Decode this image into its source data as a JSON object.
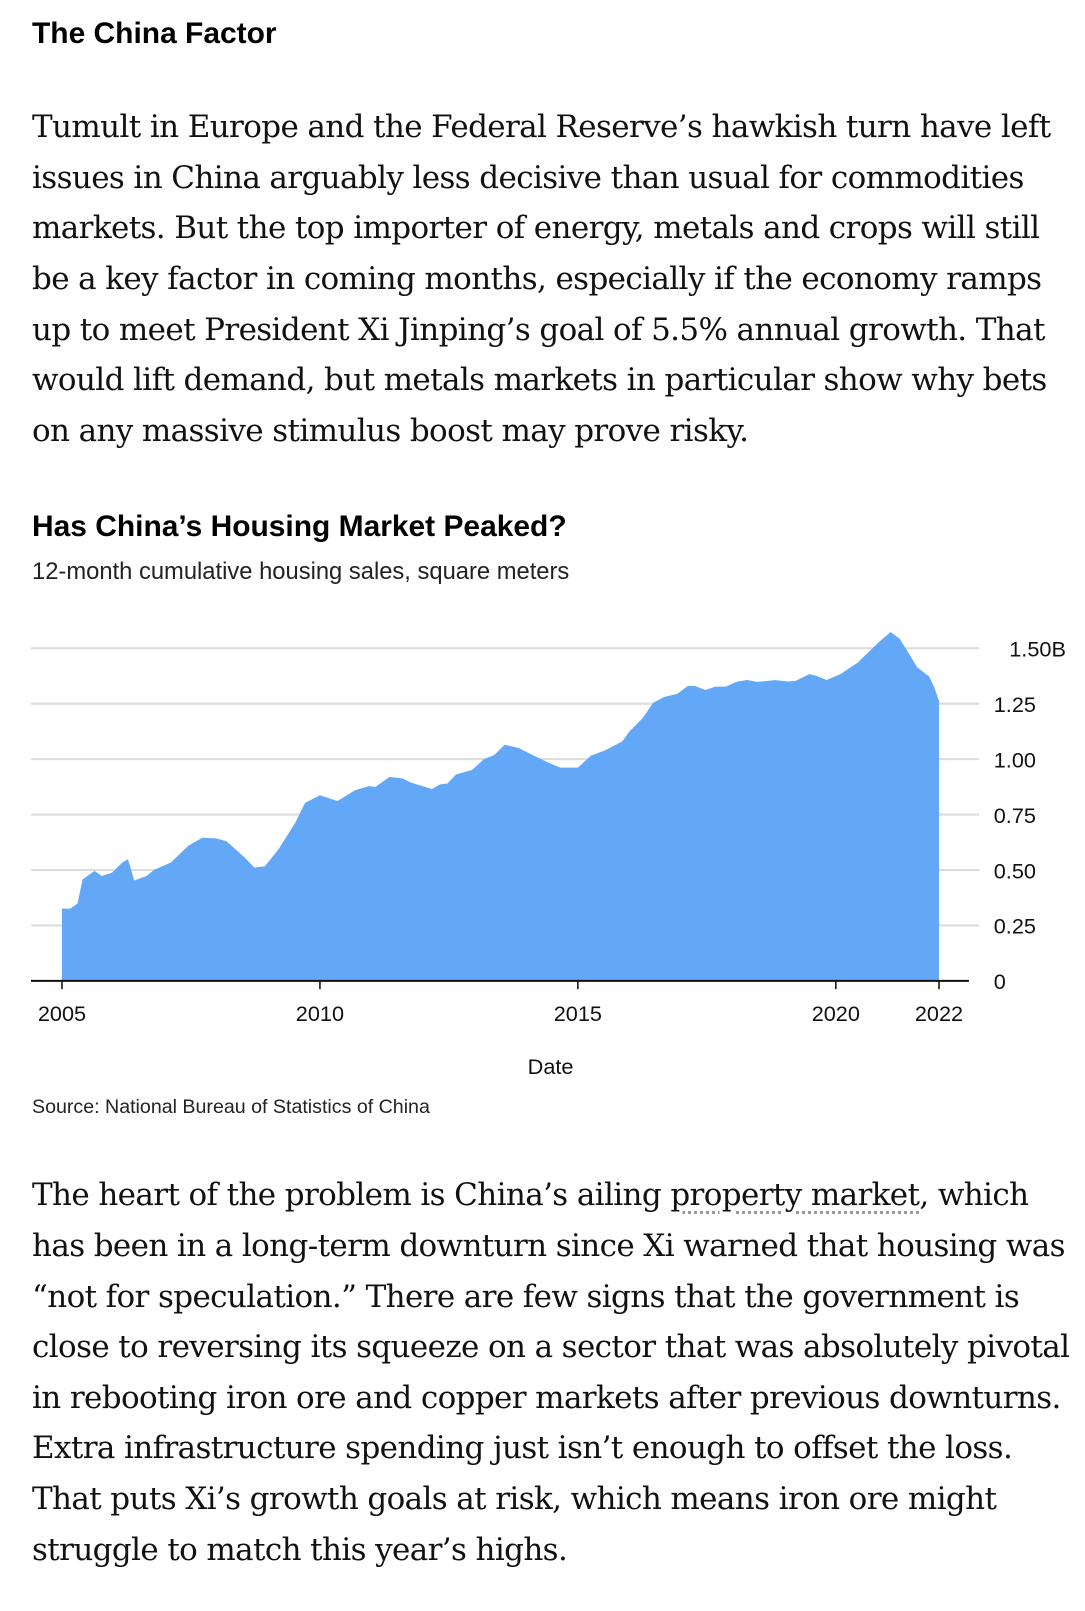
{
  "section_heading": "The China Factor",
  "paragraph1": "Tumult in Europe and the Federal Reserve’s hawkish turn have left issues in China arguably less decisive than usual for commodities markets. But the top importer of energy, metals and crops will still be a key factor in coming months, especially if the economy ramps up to meet President Xi Jinping’s goal of 5.5% annual growth. That would lift demand, but metals markets in particular show why bets on any massive stimulus boost may prove risky.",
  "paragraph2": {
    "before": "The heart of the problem is China’s ailing ",
    "link": "property market",
    "after": ", which has been in a long-term downturn since Xi warned that housing was “not for speculation.” There are few signs that the government is close to reversing its squeeze on a sector that was absolutely pivotal in rebooting iron ore and copper markets after previous downturns. Extra infrastructure spending just isn’t enough to offset the loss. That puts Xi’s growth goals at risk, which means iron ore might struggle to match this year’s highs."
  },
  "source": "Source: National Bureau of Statistics of China",
  "chart_data": {
    "type": "area",
    "title": "Has China’s Housing Market Peaked?",
    "subtitle": "12-month cumulative housing sales, square meters",
    "xlabel": "Date",
    "ylabel": "",
    "color": "#63a8f7",
    "xlim": [
      2005,
      2022
    ],
    "ylim": [
      0,
      1.5
    ],
    "xticks": [
      {
        "value": 2005,
        "label": "2005"
      },
      {
        "value": 2010,
        "label": "2010"
      },
      {
        "value": 2015,
        "label": "2015"
      },
      {
        "value": 2020,
        "label": "2020"
      },
      {
        "value": 2022,
        "label": "2022"
      }
    ],
    "yticks": [
      {
        "value": 0,
        "label": "0"
      },
      {
        "value": 0.25,
        "label": "0.25"
      },
      {
        "value": 0.5,
        "label": "0.50"
      },
      {
        "value": 0.75,
        "label": "0.75"
      },
      {
        "value": 1.0,
        "label": "1.00"
      },
      {
        "value": 1.25,
        "label": "1.25"
      },
      {
        "value": 1.5,
        "label": "1.50B"
      }
    ],
    "grid": true,
    "x": [
      2005.0,
      2005.16,
      2005.3,
      2005.4,
      2005.63,
      2005.77,
      2005.97,
      2006.17,
      2006.28,
      2006.4,
      2006.64,
      2006.78,
      2007.11,
      2007.45,
      2007.72,
      2007.99,
      2008.19,
      2008.52,
      2008.73,
      2008.93,
      2009.2,
      2009.53,
      2009.71,
      2010.0,
      2010.34,
      2010.68,
      2010.95,
      2011.08,
      2011.35,
      2011.6,
      2011.76,
      2012.17,
      2012.33,
      2012.47,
      2012.64,
      2012.95,
      2013.18,
      2013.38,
      2013.58,
      2013.85,
      2014.12,
      2014.46,
      2014.66,
      2015.0,
      2015.25,
      2015.52,
      2015.86,
      2016.0,
      2016.26,
      2016.46,
      2016.67,
      2016.93,
      2017.13,
      2017.27,
      2017.47,
      2017.67,
      2017.87,
      2018.07,
      2018.28,
      2018.48,
      2018.82,
      2019.08,
      2019.22,
      2019.49,
      2019.62,
      2019.82,
      2020.09,
      2020.43,
      2020.63,
      2020.83,
      2021.06,
      2021.24,
      2021.58,
      2021.81,
      2021.91,
      2022.0
    ],
    "y": [
      0.326,
      0.326,
      0.349,
      0.458,
      0.496,
      0.473,
      0.488,
      0.534,
      0.549,
      0.453,
      0.473,
      0.5,
      0.534,
      0.61,
      0.645,
      0.643,
      0.63,
      0.561,
      0.511,
      0.516,
      0.595,
      0.716,
      0.802,
      0.837,
      0.811,
      0.86,
      0.878,
      0.875,
      0.92,
      0.913,
      0.895,
      0.865,
      0.886,
      0.89,
      0.931,
      0.951,
      1.0,
      1.019,
      1.065,
      1.05,
      1.019,
      0.981,
      0.962,
      0.962,
      1.015,
      1.039,
      1.08,
      1.125,
      1.186,
      1.254,
      1.28,
      1.295,
      1.33,
      1.33,
      1.312,
      1.327,
      1.327,
      1.348,
      1.357,
      1.348,
      1.356,
      1.35,
      1.353,
      1.383,
      1.376,
      1.357,
      1.383,
      1.436,
      1.482,
      1.527,
      1.573,
      1.543,
      1.414,
      1.373,
      1.323,
      1.262
    ]
  }
}
